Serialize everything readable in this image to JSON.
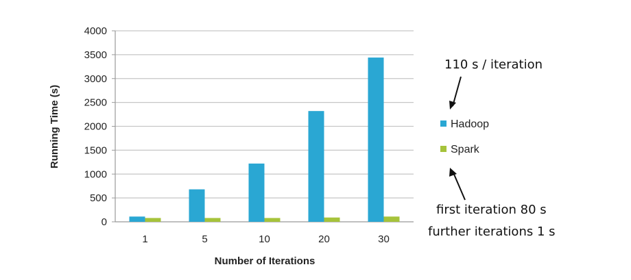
{
  "chart_data": {
    "type": "bar",
    "title": "",
    "xlabel": "Number of Iterations",
    "ylabel": "Running Time (s)",
    "categories": [
      "1",
      "5",
      "10",
      "20",
      "30"
    ],
    "ylim": [
      0,
      4000
    ],
    "yticks": [
      0,
      500,
      1000,
      1500,
      2000,
      2500,
      3000,
      3500,
      4000
    ],
    "grid": true,
    "legend_position": "right",
    "series": [
      {
        "name": "Hadoop",
        "color": "#2aa7d3",
        "values": [
          110,
          680,
          1220,
          2320,
          3440
        ]
      },
      {
        "name": "Spark",
        "color": "#a6c33b",
        "values": [
          80,
          80,
          80,
          90,
          110
        ]
      }
    ]
  },
  "annotations": {
    "hadoop": "110 s / iteration",
    "spark_line1": "first iteration 80 s",
    "spark_line2": "further iterations 1 s"
  }
}
